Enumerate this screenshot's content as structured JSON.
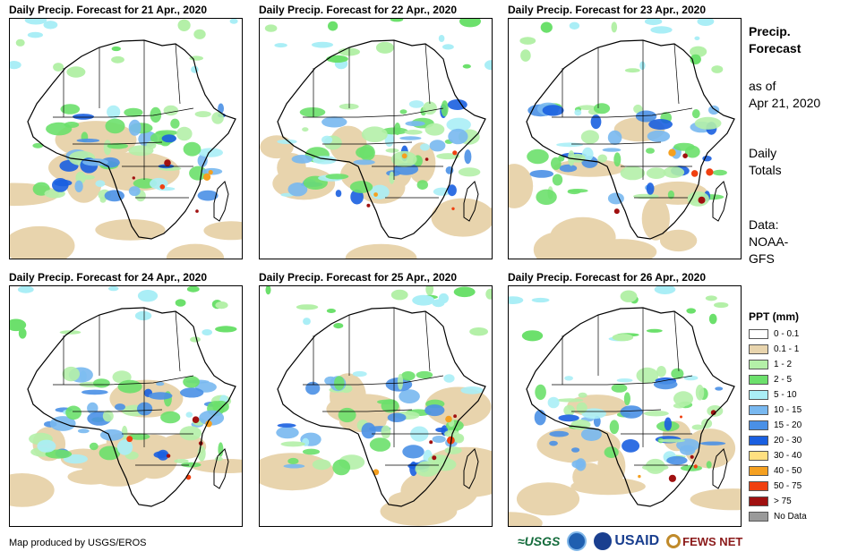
{
  "panels": [
    {
      "title": "Daily Precip. Forecast for 21 Apr., 2020"
    },
    {
      "title": "Daily Precip. Forecast for 22 Apr., 2020"
    },
    {
      "title": "Daily Precip. Forecast for 23 Apr., 2020"
    },
    {
      "title": "Daily Precip. Forecast for 24 Apr., 2020"
    },
    {
      "title": "Daily Precip. Forecast for 25 Apr., 2020"
    },
    {
      "title": "Daily Precip. Forecast for 26 Apr., 2020"
    }
  ],
  "side": {
    "title_line1": "Precip.",
    "title_line2": "Forecast",
    "asof_line1": "as of",
    "asof_line2": "Apr 21, 2020",
    "totals_line1": "Daily",
    "totals_line2": "Totals",
    "data_line1": "Data:",
    "data_line2": "NOAA-",
    "data_line3": "GFS"
  },
  "legend": {
    "title": "PPT (mm)",
    "items": [
      {
        "label": "0 - 0.1",
        "color": "#ffffff"
      },
      {
        "label": "0.1 - 1",
        "color": "#e8d4ad"
      },
      {
        "label": "1 - 2",
        "color": "#b4f0a8"
      },
      {
        "label": "2 - 5",
        "color": "#6ce06c"
      },
      {
        "label": "5 - 10",
        "color": "#aaeef6"
      },
      {
        "label": "10 - 15",
        "color": "#78b8f0"
      },
      {
        "label": "15 - 20",
        "color": "#4a90e6"
      },
      {
        "label": "20 - 30",
        "color": "#1a5fe0"
      },
      {
        "label": "30 - 40",
        "color": "#ffe080"
      },
      {
        "label": "40 - 50",
        "color": "#f5a020"
      },
      {
        "label": "50 - 75",
        "color": "#f04010"
      },
      {
        "label": "> 75",
        "color": "#a01010"
      },
      {
        "label": "No Data",
        "color": "#9a9a9a"
      }
    ]
  },
  "footer": {
    "credit": "Map produced by USGS/EROS",
    "logo_usgs": "≈USGS",
    "logo_usaid_main": "USAID",
    "logo_fews": "FEWS NET"
  }
}
